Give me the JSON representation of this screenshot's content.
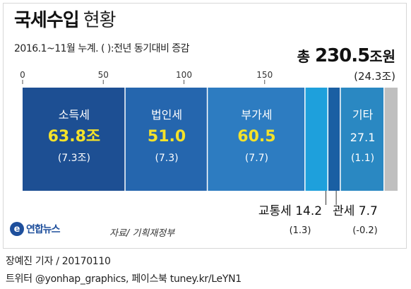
{
  "title_bold": "국세수입",
  "title_light": "현황",
  "subtitle": "2016.1~11월 누계. ( ):전년 동기대비 증감",
  "total": {
    "prefix": "총",
    "value": "230.5",
    "unit": "조원",
    "change": "(24.3조)"
  },
  "source": "자료/ 기획재정부",
  "logo_text": "연합뉴스",
  "credits": [
    "장예진 기자 / 20170110",
    "트위터 @yonhap_graphics, 페이스북 tuney.kr/LeYN1"
  ],
  "colors": {
    "income_tax": "#1d4f93",
    "corporate_tax": "#2566ae",
    "vat": "#2d7cc1",
    "transport_tax": "#1ea0dc",
    "customs": "#1a5fa3",
    "other": "#2a88c2",
    "remainder": "#bfbfbf",
    "highlight": "#f4e22a"
  },
  "chart_data": {
    "type": "bar",
    "orientation": "horizontal-stacked",
    "unit": "조원",
    "axis_ticks": [
      0,
      50,
      100,
      150
    ],
    "xlim": [
      0,
      230.5
    ],
    "total": 230.5,
    "segments": [
      {
        "label": "소득세",
        "value": 63.8,
        "value_text": "63.8조",
        "change": "(7.3조)",
        "color_key": "income_tax",
        "label_position": "inside"
      },
      {
        "label": "법인세",
        "value": 51.0,
        "value_text": "51.0",
        "change": "(7.3)",
        "color_key": "corporate_tax",
        "label_position": "inside"
      },
      {
        "label": "부가세",
        "value": 60.5,
        "value_text": "60.5",
        "change": "(7.7)",
        "color_key": "vat",
        "label_position": "inside"
      },
      {
        "label": "교통세",
        "value": 14.2,
        "value_text": "14.2",
        "change": "(1.3)",
        "color_key": "transport_tax",
        "label_position": "below"
      },
      {
        "label": "관세",
        "value": 7.7,
        "value_text": "7.7",
        "change": "(-0.2)",
        "color_key": "customs",
        "label_position": "below"
      },
      {
        "label": "기타",
        "value": 27.1,
        "value_text": "27.1",
        "change": "(1.1)",
        "color_key": "other",
        "label_position": "inside"
      }
    ]
  }
}
